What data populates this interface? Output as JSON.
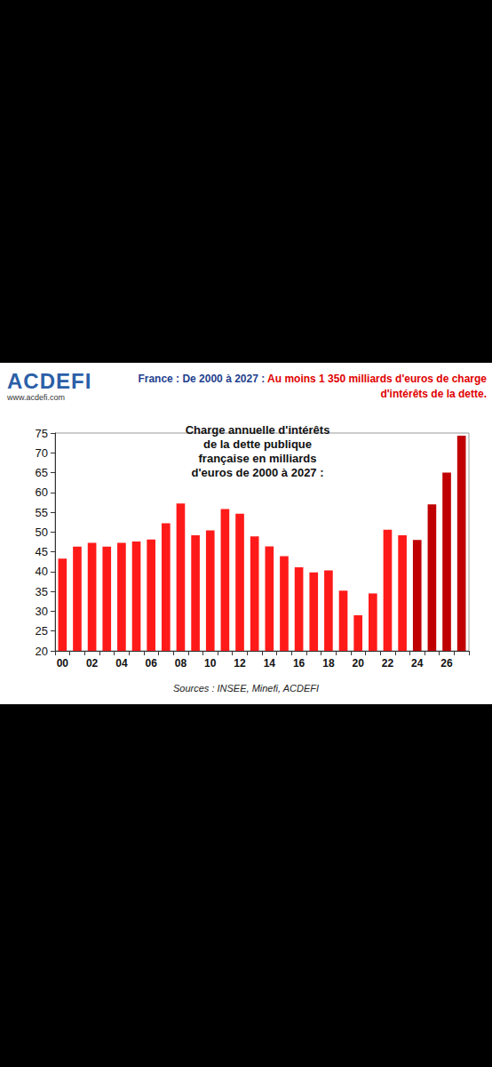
{
  "chart_data": {
    "type": "bar",
    "title": "France : De 2000 à 2027 : Au moins 1 350 milliards d'euros de charge d'intérêts de la dette.",
    "subtitle": "Charge annuelle d'intérêts de la dette publique française en milliards d'euros de 2000 à 2027 :",
    "logo": "ACDEFI",
    "website": "www.acdefi.com",
    "source": "Sources : INSEE, Minefi, ACDEFI",
    "categories": [
      "00",
      null,
      "02",
      null,
      "04",
      null,
      "06",
      null,
      "08",
      null,
      "10",
      null,
      "12",
      null,
      "14",
      null,
      "16",
      null,
      "18",
      null,
      "20",
      null,
      "22",
      null,
      "24",
      null,
      "26",
      null
    ],
    "values": [
      43.3,
      46.3,
      47.3,
      46.3,
      47.3,
      47.6,
      48.1,
      52.2,
      57.2,
      49.2,
      50.4,
      55.8,
      54.6,
      48.9,
      46.4,
      43.9,
      41.1,
      39.8,
      40.3,
      35.2,
      29.0,
      34.5,
      50.6,
      49.2,
      48.0,
      57.0,
      65.0,
      74.3
    ],
    "colors": [
      "#ff1a1a",
      "#ff1a1a",
      "#ff1a1a",
      "#ff1a1a",
      "#ff1a1a",
      "#ff1a1a",
      "#ff1a1a",
      "#ff1a1a",
      "#ff1a1a",
      "#ff1a1a",
      "#ff1a1a",
      "#ff1a1a",
      "#ff1a1a",
      "#ff1a1a",
      "#ff1a1a",
      "#ff1a1a",
      "#ff1a1a",
      "#ff1a1a",
      "#ff1a1a",
      "#ff1a1a",
      "#ff1a1a",
      "#ff1a1a",
      "#ff1a1a",
      "#ff1a1a",
      "#c00000",
      "#c00000",
      "#c00000",
      "#c00000"
    ],
    "ylim": [
      20,
      75
    ],
    "yticks": [
      20,
      25,
      30,
      35,
      40,
      45,
      50,
      55,
      60,
      65,
      70,
      75
    ],
    "grid": false
  }
}
